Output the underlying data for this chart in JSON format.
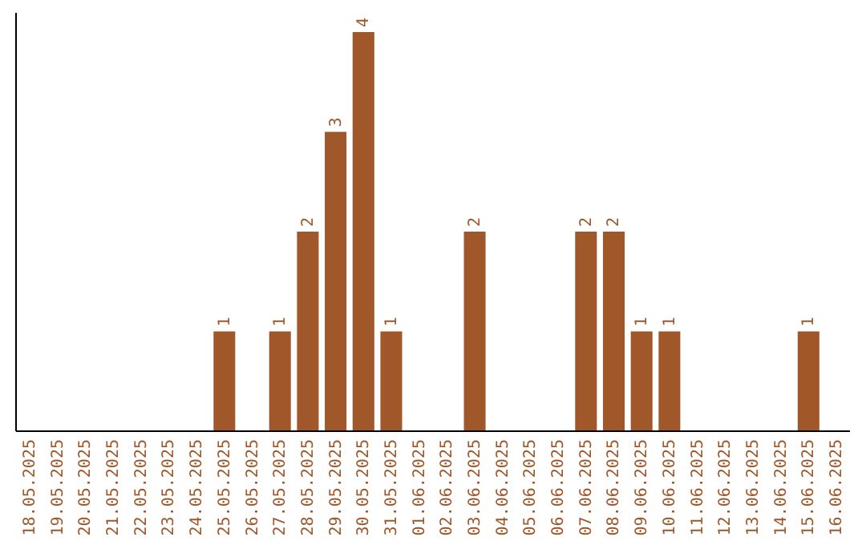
{
  "chart_data": {
    "type": "bar",
    "categories": [
      "18.05.2025",
      "19.05.2025",
      "20.05.2025",
      "21.05.2025",
      "22.05.2025",
      "23.05.2025",
      "24.05.2025",
      "25.05.2025",
      "26.05.2025",
      "27.05.2025",
      "28.05.2025",
      "29.05.2025",
      "30.05.2025",
      "31.05.2025",
      "01.06.2025",
      "02.06.2025",
      "03.06.2025",
      "04.06.2025",
      "05.06.2025",
      "06.06.2025",
      "07.06.2025",
      "08.06.2025",
      "09.06.2025",
      "10.06.2025",
      "11.06.2025",
      "12.06.2025",
      "13.06.2025",
      "14.06.2025",
      "15.06.2025",
      "16.06.2025"
    ],
    "values": [
      0,
      0,
      0,
      0,
      0,
      0,
      0,
      1,
      0,
      1,
      2,
      3,
      4,
      1,
      0,
      0,
      2,
      0,
      0,
      0,
      2,
      2,
      1,
      1,
      0,
      0,
      0,
      0,
      1,
      0
    ],
    "value_labels": [
      null,
      null,
      null,
      null,
      null,
      null,
      null,
      "1",
      null,
      "1",
      "2",
      "3",
      "4",
      "1",
      null,
      null,
      "2",
      null,
      null,
      null,
      "2",
      "2",
      "1",
      "1",
      null,
      null,
      null,
      null,
      "1",
      null
    ],
    "color": "#a0582a"
  }
}
